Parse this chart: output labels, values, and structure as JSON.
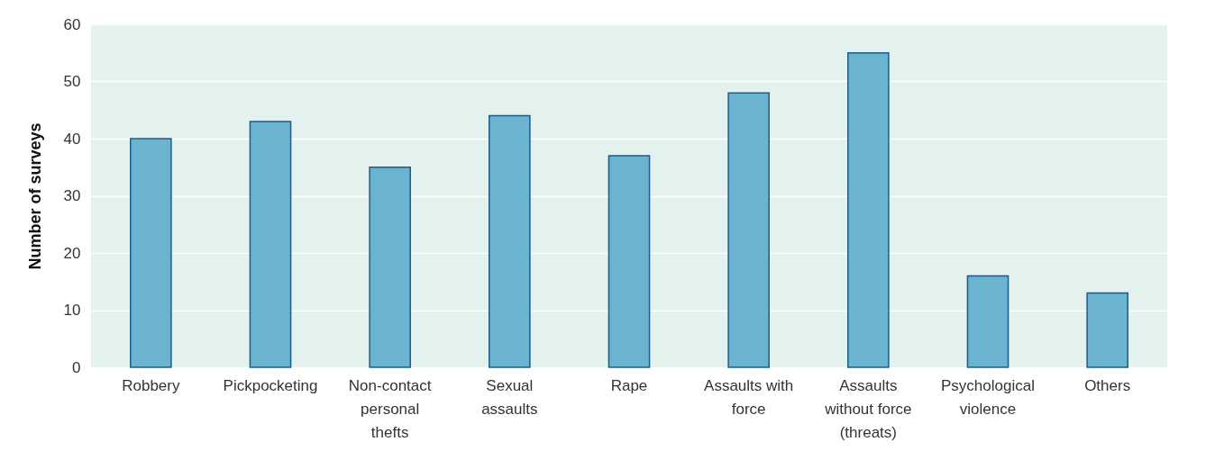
{
  "chart_data": {
    "type": "bar",
    "ylabel": "Number of surveys",
    "categories": [
      "Robbery",
      "Pickpocketing",
      "Non-contact personal thefts",
      "Sexual assaults",
      "Rape",
      "Assaults with force",
      "Assaults without force (threats)",
      "Psychological violence",
      "Others"
    ],
    "values": [
      40,
      43,
      35,
      44,
      37,
      48,
      55,
      16,
      13
    ],
    "color": "#6ab4d0",
    "ylim": [
      0,
      60
    ],
    "yticks": [
      0,
      10,
      20,
      30,
      40,
      50,
      60
    ],
    "grid": "y"
  }
}
